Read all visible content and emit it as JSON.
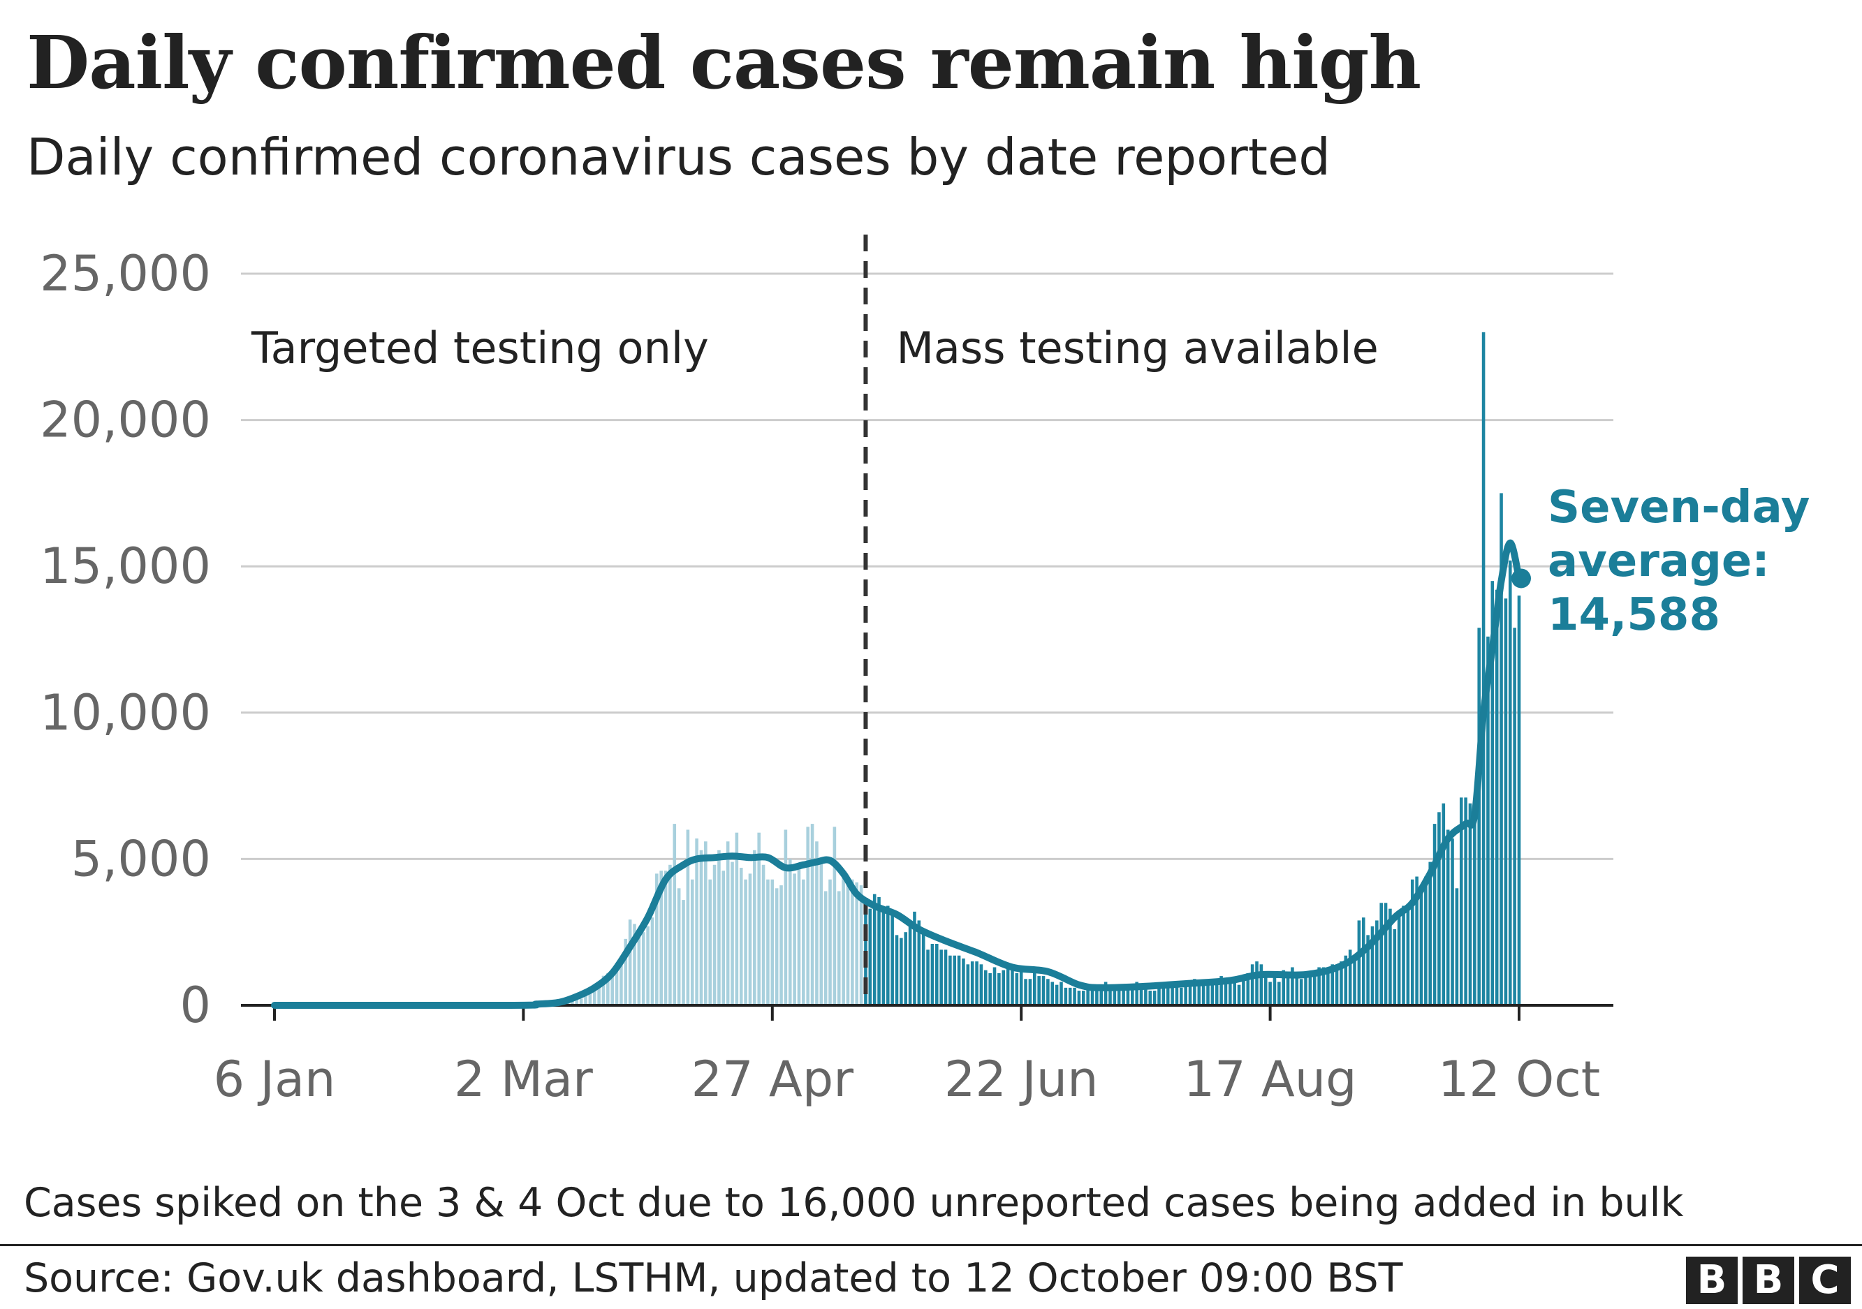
{
  "header": {
    "title": "Daily confirmed cases remain high",
    "subtitle": "Daily confirmed coronavirus cases by date reported"
  },
  "footer": {
    "note": "Cases spiked on the 3 & 4 Oct due to 16,000 unreported cases being added in bulk",
    "source": "Source: Gov.uk dashboard, LSTHM, updated to 12 October 09:00 BST",
    "logo": [
      "B",
      "B",
      "C"
    ]
  },
  "colors": {
    "bars_before": "#a8d0dd",
    "bars_after": "#1d85a2",
    "line": "#1b7e99",
    "grid": "#cccccc",
    "axis_text": "#666666",
    "divider": "#333333"
  },
  "chart_data": {
    "type": "bar",
    "x_start": "2020-01-06",
    "x_end": "2020-10-12",
    "ylim": [
      0,
      25000
    ],
    "yticks": [
      0,
      5000,
      10000,
      15000,
      20000,
      25000
    ],
    "ytick_labels": [
      "0",
      "5,000",
      "10,000",
      "15,000",
      "20,000",
      "25,000"
    ],
    "xticks": [
      "2020-01-06",
      "2020-03-02",
      "2020-04-27",
      "2020-06-22",
      "2020-08-17",
      "2020-10-12"
    ],
    "xtick_labels": [
      "6 Jan",
      "2 Mar",
      "27 Apr",
      "22 Jun",
      "17 Aug",
      "12 Oct"
    ],
    "grid": true,
    "divider": {
      "date": "2020-05-18",
      "left_label": "Targeted testing only",
      "right_label": "Mass testing available"
    },
    "daily_cases": {
      "2020-03-08": 60,
      "2020-03-09": 60,
      "2020-03-10": 80,
      "2020-03-11": 90,
      "2020-03-12": 130,
      "2020-03-13": 210,
      "2020-03-14": 340,
      "2020-03-15": 230,
      "2020-03-16": 410,
      "2020-03-17": 410,
      "2020-03-18": 680,
      "2020-03-19": 680,
      "2020-03-20": 1010,
      "2020-03-21": 1100,
      "2020-03-22": 1050,
      "2020-03-23": 1450,
      "2020-03-24": 1520,
      "2020-03-25": 2270,
      "2020-03-26": 2930,
      "2020-03-27": 2780,
      "2020-03-28": 2600,
      "2020-03-29": 2500,
      "2020-03-30": 2700,
      "2020-03-31": 3000,
      "2020-04-01": 4500,
      "2020-04-02": 4600,
      "2020-04-03": 4600,
      "2020-04-04": 4800,
      "2020-04-05": 6200,
      "2020-04-06": 4000,
      "2020-04-07": 3600,
      "2020-04-08": 6000,
      "2020-04-09": 4300,
      "2020-04-10": 5700,
      "2020-04-11": 5300,
      "2020-04-12": 5600,
      "2020-04-13": 4300,
      "2020-04-14": 4800,
      "2020-04-15": 5300,
      "2020-04-16": 4600,
      "2020-04-17": 5600,
      "2020-04-18": 4900,
      "2020-04-19": 5900,
      "2020-04-20": 4700,
      "2020-04-21": 4300,
      "2020-04-22": 4500,
      "2020-04-23": 5300,
      "2020-04-24": 5900,
      "2020-04-25": 4800,
      "2020-04-26": 4300,
      "2020-04-27": 4300,
      "2020-04-28": 4000,
      "2020-04-29": 4100,
      "2020-04-30": 6000,
      "2020-05-01": 5000,
      "2020-05-02": 4500,
      "2020-05-03": 4700,
      "2020-05-04": 4300,
      "2020-05-05": 6100,
      "2020-05-06": 6200,
      "2020-05-07": 5600,
      "2020-05-08": 4900,
      "2020-05-09": 3900,
      "2020-05-10": 4300,
      "2020-05-11": 6100,
      "2020-05-12": 3900,
      "2020-05-13": 4600,
      "2020-05-14": 4200,
      "2020-05-15": 4300,
      "2020-05-16": 4200,
      "2020-05-17": 4100,
      "2020-05-18": 3200,
      "2020-05-19": 3300,
      "2020-05-20": 3800,
      "2020-05-21": 3700,
      "2020-05-22": 3200,
      "2020-05-23": 3400,
      "2020-05-24": 3100,
      "2020-05-25": 2400,
      "2020-05-26": 2300,
      "2020-05-27": 2500,
      "2020-05-28": 2800,
      "2020-05-29": 3200,
      "2020-05-30": 2900,
      "2020-05-31": 2600,
      "2020-06-01": 1900,
      "2020-06-02": 2100,
      "2020-06-03": 2100,
      "2020-06-04": 1900,
      "2020-06-05": 1900,
      "2020-06-06": 1700,
      "2020-06-07": 1700,
      "2020-06-08": 1700,
      "2020-06-09": 1600,
      "2020-06-10": 1400,
      "2020-06-11": 1500,
      "2020-06-12": 1500,
      "2020-06-13": 1400,
      "2020-06-14": 1200,
      "2020-06-15": 1100,
      "2020-06-16": 1300,
      "2020-06-17": 1100,
      "2020-06-18": 1200,
      "2020-06-19": 1300,
      "2020-06-20": 1300,
      "2020-06-21": 1100,
      "2020-06-22": 1200,
      "2020-06-23": 900,
      "2020-06-24": 900,
      "2020-06-25": 1100,
      "2020-06-26": 1000,
      "2020-06-27": 1000,
      "2020-06-28": 900,
      "2020-06-29": 800,
      "2020-06-30": 700,
      "2020-07-01": 800,
      "2020-07-02": 600,
      "2020-07-03": 600,
      "2020-07-04": 600,
      "2020-07-05": 500,
      "2020-07-06": 500,
      "2020-07-07": 600,
      "2020-07-08": 600,
      "2020-07-09": 600,
      "2020-07-10": 500,
      "2020-07-11": 800,
      "2020-07-12": 600,
      "2020-07-13": 500,
      "2020-07-14": 600,
      "2020-07-15": 700,
      "2020-07-16": 600,
      "2020-07-17": 700,
      "2020-07-18": 800,
      "2020-07-19": 700,
      "2020-07-20": 600,
      "2020-07-21": 500,
      "2020-07-22": 500,
      "2020-07-23": 700,
      "2020-07-24": 700,
      "2020-07-25": 700,
      "2020-07-26": 800,
      "2020-07-27": 700,
      "2020-07-28": 600,
      "2020-07-29": 700,
      "2020-07-30": 800,
      "2020-07-31": 900,
      "2020-08-01": 800,
      "2020-08-02": 700,
      "2020-08-03": 700,
      "2020-08-04": 700,
      "2020-08-05": 900,
      "2020-08-06": 1000,
      "2020-08-07": 800,
      "2020-08-08": 900,
      "2020-08-09": 800,
      "2020-08-10": 700,
      "2020-08-11": 900,
      "2020-08-12": 1100,
      "2020-08-13": 1400,
      "2020-08-14": 1500,
      "2020-08-15": 1400,
      "2020-08-16": 1000,
      "2020-08-17": 800,
      "2020-08-18": 1100,
      "2020-08-19": 800,
      "2020-08-20": 1200,
      "2020-08-21": 1000,
      "2020-08-22": 1300,
      "2020-08-23": 1000,
      "2020-08-24": 900,
      "2020-08-25": 1000,
      "2020-08-26": 1100,
      "2020-08-27": 1200,
      "2020-08-28": 1300,
      "2020-08-29": 1300,
      "2020-08-30": 1100,
      "2020-08-31": 1400,
      "2020-09-01": 1300,
      "2020-09-02": 1500,
      "2020-09-03": 1700,
      "2020-09-04": 1900,
      "2020-09-05": 1700,
      "2020-09-06": 2900,
      "2020-09-07": 3000,
      "2020-09-08": 2400,
      "2020-09-09": 2700,
      "2020-09-10": 2900,
      "2020-09-11": 3500,
      "2020-09-12": 3500,
      "2020-09-13": 3300,
      "2020-09-14": 2600,
      "2020-09-15": 3100,
      "2020-09-16": 3400,
      "2020-09-17": 3400,
      "2020-09-18": 4300,
      "2020-09-19": 4400,
      "2020-09-20": 3900,
      "2020-09-21": 4400,
      "2020-09-22": 4900,
      "2020-09-23": 6200,
      "2020-09-24": 6600,
      "2020-09-25": 6900,
      "2020-09-26": 6000,
      "2020-09-27": 5700,
      "2020-09-28": 4000,
      "2020-09-29": 7100,
      "2020-09-30": 7100,
      "2020-10-01": 6900,
      "2020-10-02": 6900,
      "2020-10-03": 12900,
      "2020-10-04": 23000,
      "2020-10-05": 12600,
      "2020-10-06": 14500,
      "2020-10-07": 14200,
      "2020-10-08": 17500,
      "2020-10-09": 13900,
      "2020-10-10": 15200,
      "2020-10-11": 12900,
      "2020-10-12": 14000
    },
    "series": [
      {
        "name": "Seven-day average:",
        "value_label": "14,588",
        "points": [
          [
            "2020-01-06",
            0
          ],
          [
            "2020-02-28",
            0
          ],
          [
            "2020-03-05",
            40
          ],
          [
            "2020-03-10",
            100
          ],
          [
            "2020-03-14",
            300
          ],
          [
            "2020-03-18",
            600
          ],
          [
            "2020-03-22",
            1100
          ],
          [
            "2020-03-26",
            2000
          ],
          [
            "2020-03-30",
            3000
          ],
          [
            "2020-04-03",
            4300
          ],
          [
            "2020-04-07",
            4800
          ],
          [
            "2020-04-10",
            5000
          ],
          [
            "2020-04-14",
            5050
          ],
          [
            "2020-04-18",
            5100
          ],
          [
            "2020-04-22",
            5050
          ],
          [
            "2020-04-26",
            5050
          ],
          [
            "2020-04-30",
            4700
          ],
          [
            "2020-05-04",
            4800
          ],
          [
            "2020-05-07",
            4900
          ],
          [
            "2020-05-10",
            4950
          ],
          [
            "2020-05-13",
            4500
          ],
          [
            "2020-05-16",
            3800
          ],
          [
            "2020-05-20",
            3400
          ],
          [
            "2020-05-25",
            3100
          ],
          [
            "2020-05-30",
            2600
          ],
          [
            "2020-06-05",
            2200
          ],
          [
            "2020-06-12",
            1800
          ],
          [
            "2020-06-20",
            1300
          ],
          [
            "2020-06-28",
            1150
          ],
          [
            "2020-07-05",
            700
          ],
          [
            "2020-07-10",
            600
          ],
          [
            "2020-07-20",
            650
          ],
          [
            "2020-07-30",
            750
          ],
          [
            "2020-08-08",
            850
          ],
          [
            "2020-08-15",
            1050
          ],
          [
            "2020-08-25",
            1050
          ],
          [
            "2020-09-02",
            1350
          ],
          [
            "2020-09-08",
            2000
          ],
          [
            "2020-09-14",
            3000
          ],
          [
            "2020-09-18",
            3500
          ],
          [
            "2020-09-22",
            4500
          ],
          [
            "2020-09-26",
            5700
          ],
          [
            "2020-09-30",
            6200
          ],
          [
            "2020-10-02",
            6500
          ],
          [
            "2020-10-04",
            10000
          ],
          [
            "2020-10-06",
            12200
          ],
          [
            "2020-10-08",
            14500
          ],
          [
            "2020-10-10",
            15800
          ],
          [
            "2020-10-12",
            14588
          ]
        ]
      }
    ]
  }
}
